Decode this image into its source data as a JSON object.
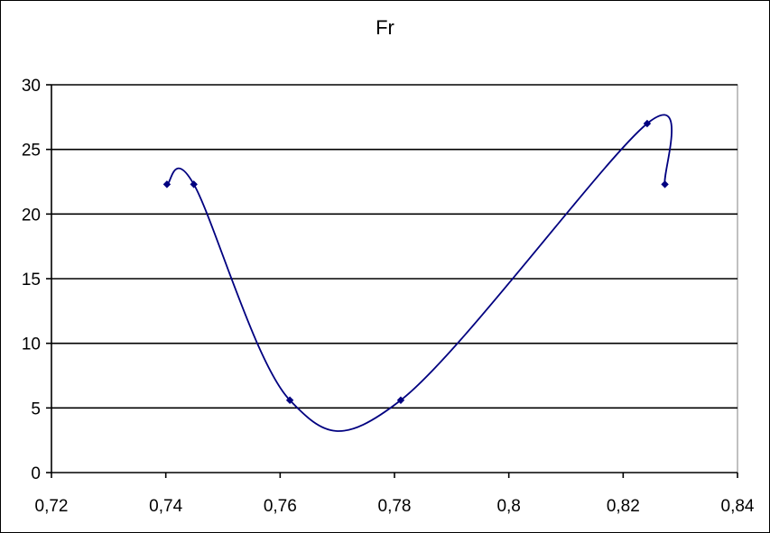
{
  "chart_data": {
    "type": "scatter",
    "title": "Fr",
    "xlabel": "",
    "ylabel": "",
    "xlim": [
      0.72,
      0.84
    ],
    "ylim": [
      0,
      30
    ],
    "x_ticks": [
      0.72,
      0.74,
      0.76,
      0.78,
      0.8,
      0.82,
      0.84
    ],
    "x_tick_labels": [
      "0,72",
      "0,74",
      "0,76",
      "0,78",
      "0,8",
      "0,82",
      "0,84"
    ],
    "y_ticks": [
      0,
      5,
      10,
      15,
      20,
      25,
      30
    ],
    "y_tick_labels": [
      "0",
      "5",
      "10",
      "15",
      "20",
      "25",
      "30"
    ],
    "grid": "horizontal",
    "legend": "none",
    "smoothed_line": true,
    "series": [
      {
        "color": "#000080",
        "points": [
          {
            "x": 0.7402,
            "y": 22.3
          },
          {
            "x": 0.7449,
            "y": 22.3
          },
          {
            "x": 0.7617,
            "y": 5.6
          },
          {
            "x": 0.7811,
            "y": 5.6
          },
          {
            "x": 0.8242,
            "y": 27.0
          },
          {
            "x": 0.8273,
            "y": 22.3
          }
        ]
      }
    ]
  }
}
